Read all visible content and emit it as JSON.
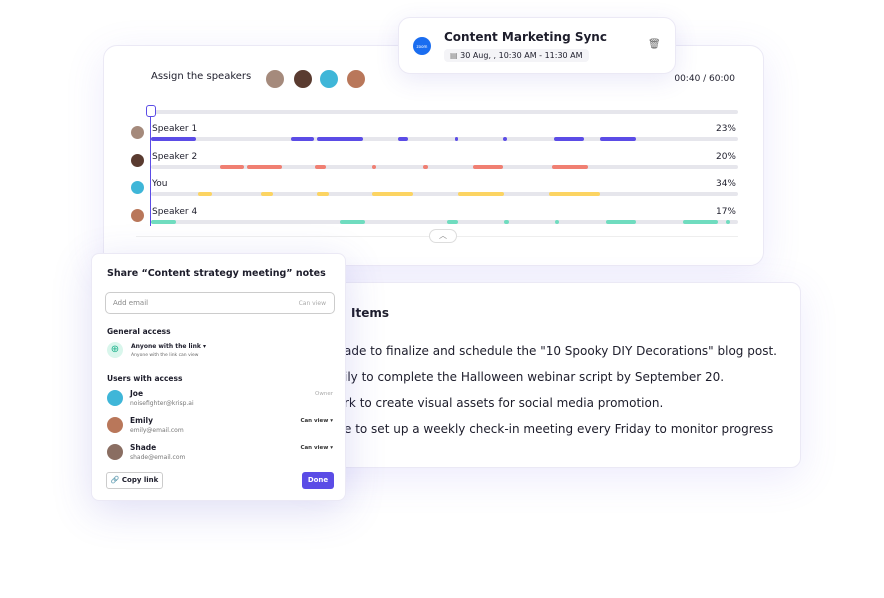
{
  "meeting": {
    "title": "Content Marketing Sync",
    "date": "30 Aug, , 10:30 AM - 11:30 AM",
    "app_icon": "zoom-icon",
    "app_label": "zoom"
  },
  "timeline": {
    "title": "Assign the speakers",
    "time": "00:40 / 60:00",
    "speakers": [
      {
        "name": "Speaker 1",
        "percent": "23%",
        "color": "#5b4ce6"
      },
      {
        "name": "Speaker 2",
        "percent": "20%",
        "color": "#f07f72"
      },
      {
        "name": "You",
        "percent": "34%",
        "color": "#fcd462"
      },
      {
        "name": "Speaker 4",
        "percent": "17%",
        "color": "#6fdcbf"
      }
    ],
    "progress": 0.011
  },
  "action_items": {
    "heading": "Items",
    "lines": [
      "ade to finalize and schedule the \"10 Spooky DIY Decorations\" blog post.",
      "ily to complete the Halloween webinar script by September 20.",
      "rk to create visual assets for social media promotion.",
      "e to set up a weekly check-in meeting every Friday to monitor progress"
    ]
  },
  "share": {
    "title": "Share “Content strategy meeting” notes",
    "email_placeholder": "Add email",
    "email_permission": "Can view",
    "general_access": "General access",
    "access_option": "Anyone with the link",
    "access_desc": "Anyone with the link can view",
    "users_heading": "Users with access",
    "users": [
      {
        "name": "Joe",
        "email": "noisefighter@krisp.ai",
        "role": "Owner"
      },
      {
        "name": "Emily",
        "email": "emily@email.com",
        "role": "Can view"
      },
      {
        "name": "Shade",
        "email": "shade@email.com",
        "role": "Can view"
      }
    ],
    "copy_link": "Copy link",
    "done": "Done",
    "accent": "#5b4ce6"
  }
}
